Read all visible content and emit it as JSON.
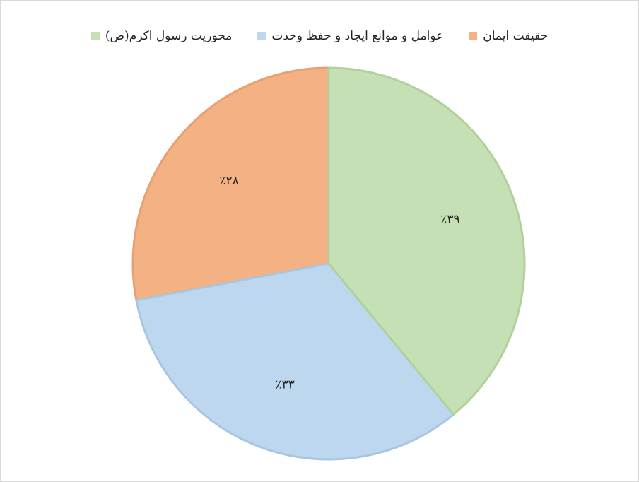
{
  "chart_data": {
    "type": "pie",
    "categories": [
      "حقیقت ایمان",
      "عوامل و موانع ایجاد و حفظ وحدت",
      "محوریت رسول اکرم(ص)"
    ],
    "values": [
      28,
      33,
      39
    ],
    "value_labels": [
      "٪۲۸",
      "٪۳۳",
      "٪۳۹"
    ],
    "colors": [
      "#f4b183",
      "#bdd7ee",
      "#c5e0b4"
    ],
    "direction": "counterclockwise",
    "legend": "top"
  }
}
